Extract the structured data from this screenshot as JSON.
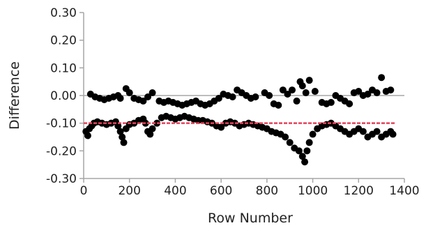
{
  "chart_data": {
    "type": "scatter",
    "title": "",
    "xlabel": "Row Number",
    "ylabel": "Difference",
    "xlim": [
      0,
      1400
    ],
    "ylim": [
      -0.3,
      0.3
    ],
    "x_ticks": [
      "0",
      "200",
      "400",
      "600",
      "800",
      "1000",
      "1200",
      "1400"
    ],
    "y_ticks": [
      "0.30",
      "0.20",
      "0.10",
      "0.00",
      "-0.10",
      "-0.20",
      "-0.30"
    ],
    "grid": false,
    "zero_line": true,
    "reference_line": {
      "y": -0.1,
      "color": "#e8425a"
    },
    "point_color": "#000000",
    "series": [
      {
        "values": [
          {
            "x": 10,
            "y": -0.13
          },
          {
            "x": 18,
            "y": -0.145
          },
          {
            "x": 25,
            "y": -0.12
          },
          {
            "x": 35,
            "y": -0.11
          },
          {
            "x": 45,
            "y": -0.1
          },
          {
            "x": 60,
            "y": -0.095
          },
          {
            "x": 80,
            "y": -0.1
          },
          {
            "x": 100,
            "y": -0.105
          },
          {
            "x": 120,
            "y": -0.1
          },
          {
            "x": 140,
            "y": -0.095
          },
          {
            "x": 150,
            "y": -0.11
          },
          {
            "x": 160,
            "y": -0.13
          },
          {
            "x": 168,
            "y": -0.15
          },
          {
            "x": 175,
            "y": -0.17
          },
          {
            "x": 185,
            "y": -0.12
          },
          {
            "x": 200,
            "y": -0.105
          },
          {
            "x": 220,
            "y": -0.1
          },
          {
            "x": 240,
            "y": -0.09
          },
          {
            "x": 260,
            "y": -0.085
          },
          {
            "x": 270,
            "y": -0.1
          },
          {
            "x": 280,
            "y": -0.13
          },
          {
            "x": 290,
            "y": -0.14
          },
          {
            "x": 300,
            "y": -0.12
          },
          {
            "x": 320,
            "y": -0.1
          },
          {
            "x": 340,
            "y": -0.08
          },
          {
            "x": 360,
            "y": -0.075
          },
          {
            "x": 380,
            "y": -0.08
          },
          {
            "x": 400,
            "y": -0.085
          },
          {
            "x": 420,
            "y": -0.08
          },
          {
            "x": 440,
            "y": -0.075
          },
          {
            "x": 460,
            "y": -0.08
          },
          {
            "x": 480,
            "y": -0.085
          },
          {
            "x": 500,
            "y": -0.09
          },
          {
            "x": 520,
            "y": -0.09
          },
          {
            "x": 540,
            "y": -0.095
          },
          {
            "x": 560,
            "y": -0.1
          },
          {
            "x": 580,
            "y": -0.11
          },
          {
            "x": 600,
            "y": -0.115
          },
          {
            "x": 620,
            "y": -0.1
          },
          {
            "x": 640,
            "y": -0.095
          },
          {
            "x": 660,
            "y": -0.1
          },
          {
            "x": 680,
            "y": -0.11
          },
          {
            "x": 700,
            "y": -0.105
          },
          {
            "x": 720,
            "y": -0.1
          },
          {
            "x": 740,
            "y": -0.105
          },
          {
            "x": 760,
            "y": -0.11
          },
          {
            "x": 780,
            "y": -0.115
          },
          {
            "x": 800,
            "y": -0.12
          },
          {
            "x": 820,
            "y": -0.13
          },
          {
            "x": 840,
            "y": -0.135
          },
          {
            "x": 860,
            "y": -0.14
          },
          {
            "x": 880,
            "y": -0.15
          },
          {
            "x": 900,
            "y": -0.17
          },
          {
            "x": 920,
            "y": -0.19
          },
          {
            "x": 940,
            "y": -0.2
          },
          {
            "x": 955,
            "y": -0.22
          },
          {
            "x": 965,
            "y": -0.24
          },
          {
            "x": 975,
            "y": -0.2
          },
          {
            "x": 985,
            "y": -0.17
          },
          {
            "x": 1000,
            "y": -0.14
          },
          {
            "x": 1020,
            "y": -0.12
          },
          {
            "x": 1040,
            "y": -0.11
          },
          {
            "x": 1060,
            "y": -0.105
          },
          {
            "x": 1080,
            "y": -0.1
          },
          {
            "x": 1100,
            "y": -0.11
          },
          {
            "x": 1120,
            "y": -0.12
          },
          {
            "x": 1140,
            "y": -0.13
          },
          {
            "x": 1160,
            "y": -0.14
          },
          {
            "x": 1180,
            "y": -0.13
          },
          {
            "x": 1200,
            "y": -0.12
          },
          {
            "x": 1220,
            "y": -0.13
          },
          {
            "x": 1240,
            "y": -0.15
          },
          {
            "x": 1260,
            "y": -0.14
          },
          {
            "x": 1280,
            "y": -0.13
          },
          {
            "x": 1300,
            "y": -0.15
          },
          {
            "x": 1320,
            "y": -0.14
          },
          {
            "x": 1340,
            "y": -0.13
          },
          {
            "x": 1350,
            "y": -0.14
          },
          {
            "x": 30,
            "y": 0.005
          },
          {
            "x": 50,
            "y": -0.005
          },
          {
            "x": 70,
            "y": -0.01
          },
          {
            "x": 90,
            "y": -0.015
          },
          {
            "x": 110,
            "y": -0.01
          },
          {
            "x": 130,
            "y": -0.005
          },
          {
            "x": 150,
            "y": 0.0
          },
          {
            "x": 160,
            "y": -0.01
          },
          {
            "x": 185,
            "y": 0.025
          },
          {
            "x": 200,
            "y": 0.01
          },
          {
            "x": 220,
            "y": -0.01
          },
          {
            "x": 240,
            "y": -0.015
          },
          {
            "x": 260,
            "y": -0.02
          },
          {
            "x": 280,
            "y": -0.005
          },
          {
            "x": 300,
            "y": 0.01
          },
          {
            "x": 330,
            "y": -0.02
          },
          {
            "x": 350,
            "y": -0.025
          },
          {
            "x": 370,
            "y": -0.02
          },
          {
            "x": 390,
            "y": -0.025
          },
          {
            "x": 410,
            "y": -0.03
          },
          {
            "x": 430,
            "y": -0.035
          },
          {
            "x": 450,
            "y": -0.03
          },
          {
            "x": 470,
            "y": -0.025
          },
          {
            "x": 490,
            "y": -0.02
          },
          {
            "x": 510,
            "y": -0.03
          },
          {
            "x": 530,
            "y": -0.035
          },
          {
            "x": 550,
            "y": -0.03
          },
          {
            "x": 570,
            "y": -0.02
          },
          {
            "x": 590,
            "y": -0.01
          },
          {
            "x": 610,
            "y": 0.005
          },
          {
            "x": 630,
            "y": 0.0
          },
          {
            "x": 650,
            "y": -0.005
          },
          {
            "x": 670,
            "y": 0.02
          },
          {
            "x": 690,
            "y": 0.01
          },
          {
            "x": 710,
            "y": 0.0
          },
          {
            "x": 730,
            "y": -0.01
          },
          {
            "x": 750,
            "y": -0.005
          },
          {
            "x": 790,
            "y": 0.01
          },
          {
            "x": 810,
            "y": 0.0
          },
          {
            "x": 830,
            "y": -0.03
          },
          {
            "x": 850,
            "y": -0.035
          },
          {
            "x": 870,
            "y": 0.02
          },
          {
            "x": 890,
            "y": 0.005
          },
          {
            "x": 910,
            "y": 0.02
          },
          {
            "x": 930,
            "y": -0.02
          },
          {
            "x": 945,
            "y": 0.05
          },
          {
            "x": 955,
            "y": 0.035
          },
          {
            "x": 970,
            "y": 0.01
          },
          {
            "x": 985,
            "y": 0.055
          },
          {
            "x": 1010,
            "y": 0.015
          },
          {
            "x": 1040,
            "y": -0.025
          },
          {
            "x": 1060,
            "y": -0.03
          },
          {
            "x": 1080,
            "y": -0.025
          },
          {
            "x": 1100,
            "y": 0.0
          },
          {
            "x": 1120,
            "y": -0.01
          },
          {
            "x": 1140,
            "y": -0.02
          },
          {
            "x": 1160,
            "y": -0.03
          },
          {
            "x": 1180,
            "y": 0.01
          },
          {
            "x": 1200,
            "y": 0.015
          },
          {
            "x": 1220,
            "y": 0.0
          },
          {
            "x": 1240,
            "y": 0.005
          },
          {
            "x": 1260,
            "y": 0.02
          },
          {
            "x": 1280,
            "y": 0.01
          },
          {
            "x": 1300,
            "y": 0.065
          },
          {
            "x": 1320,
            "y": 0.015
          },
          {
            "x": 1340,
            "y": 0.02
          }
        ]
      }
    ]
  }
}
